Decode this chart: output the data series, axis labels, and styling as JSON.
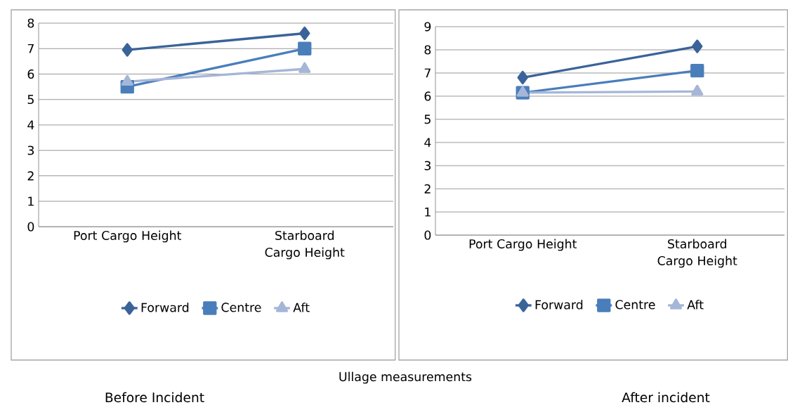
{
  "chart_data": [
    {
      "type": "line",
      "title": "Before Incident",
      "annotations": [
        "Ullage measurements"
      ],
      "categories": [
        "Port Cargo Height",
        "Starboard Cargo Height"
      ],
      "series": [
        {
          "name": "Forward",
          "color": "#3a6399",
          "marker": "diamond",
          "values": [
            6.95,
            7.6
          ]
        },
        {
          "name": "Centre",
          "color": "#4a7ebb",
          "marker": "square",
          "values": [
            5.5,
            7.0
          ]
        },
        {
          "name": "Aft",
          "color": "#a5b6d8",
          "marker": "triangle",
          "values": [
            5.7,
            6.2
          ]
        }
      ],
      "ylim": [
        0,
        8
      ],
      "yticks": [
        0,
        1,
        2,
        3,
        4,
        5,
        6,
        7,
        8
      ],
      "grid": "y",
      "legend": "bottom"
    },
    {
      "type": "line",
      "title": "After incident",
      "categories": [
        "Port Cargo Height",
        "Starboard Cargo Height"
      ],
      "series": [
        {
          "name": "Forward",
          "color": "#3a6399",
          "marker": "diamond",
          "values": [
            6.8,
            8.15
          ]
        },
        {
          "name": "Centre",
          "color": "#4a7ebb",
          "marker": "square",
          "values": [
            6.15,
            7.1
          ]
        },
        {
          "name": "Aft",
          "color": "#a5b6d8",
          "marker": "triangle",
          "values": [
            6.15,
            6.2
          ]
        }
      ],
      "ylim": [
        0,
        9
      ],
      "yticks": [
        0,
        1,
        2,
        3,
        4,
        5,
        6,
        7,
        8,
        9
      ],
      "grid": "y",
      "legend": "bottom"
    }
  ]
}
